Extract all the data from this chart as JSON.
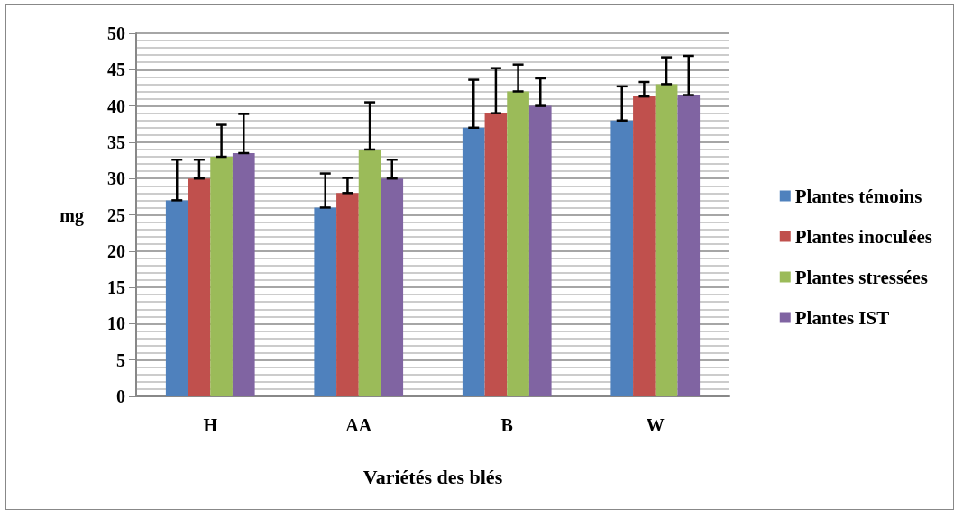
{
  "chart_data": {
    "type": "bar",
    "xlabel": "Variétés des blés",
    "ylabel": "mg",
    "categories": [
      "H",
      "AA",
      "B",
      "W"
    ],
    "series": [
      {
        "name": "Plantes témoins",
        "color": "#4f81bd",
        "values": [
          27,
          26,
          37,
          38
        ],
        "errors": [
          [
            27,
            32.6
          ],
          [
            26,
            30.7
          ],
          [
            37,
            43.6
          ],
          [
            38,
            42.7
          ]
        ]
      },
      {
        "name": "Plantes inoculées",
        "color": "#c0504d",
        "values": [
          30,
          28,
          39,
          41.3
        ],
        "errors": [
          [
            30,
            32.6
          ],
          [
            28,
            30.1
          ],
          [
            39,
            45.2
          ],
          [
            41.3,
            43.3
          ]
        ]
      },
      {
        "name": "Plantes stressées",
        "color": "#9bbb59",
        "values": [
          33,
          34,
          42,
          43
        ],
        "errors": [
          [
            33,
            37.4
          ],
          [
            34,
            40.5
          ],
          [
            42,
            45.7
          ],
          [
            43,
            46.7
          ]
        ]
      },
      {
        "name": "Plantes IST",
        "color": "#8064a2",
        "values": [
          33.5,
          30,
          40,
          41.5
        ],
        "errors": [
          [
            33.5,
            38.9
          ],
          [
            30,
            32.6
          ],
          [
            40,
            43.8
          ],
          [
            41.5,
            46.9
          ]
        ]
      }
    ],
    "ylim": [
      0,
      50
    ],
    "yticks": [
      0,
      5,
      10,
      15,
      20,
      25,
      30,
      35,
      40,
      45,
      50
    ],
    "grid": "y",
    "legend": "right"
  }
}
